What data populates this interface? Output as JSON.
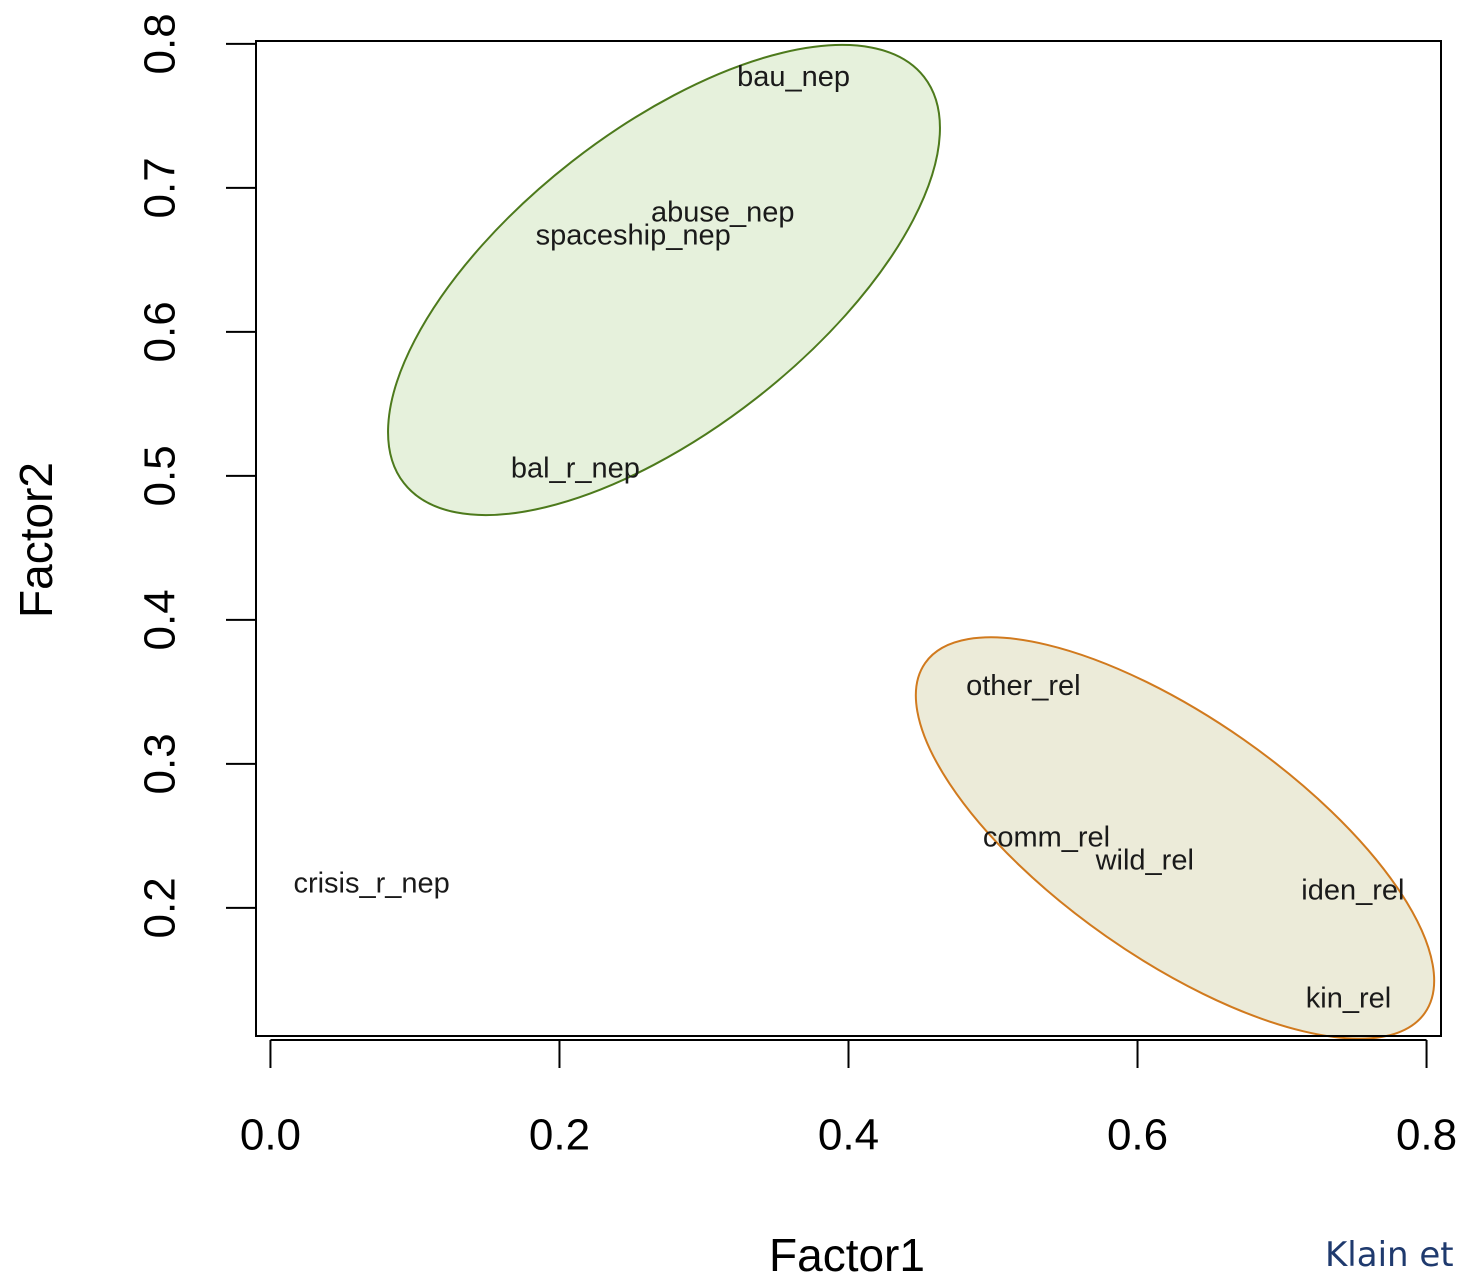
{
  "chart_data": {
    "type": "scatter",
    "x_label": "Factor1",
    "y_label": "Factor2",
    "labels": [
      "bau_nep",
      "abuse_nep",
      "spaceship_nep",
      "bal_r_nep",
      "crisis_r_nep",
      "other_rel",
      "comm_rel",
      "wild_rel",
      "iden_rel",
      "kin_rel"
    ],
    "x": [
      0.362,
      0.313,
      0.251,
      0.211,
      0.07,
      0.521,
      0.537,
      0.605,
      0.749,
      0.746
    ],
    "values": [
      0.777,
      0.683,
      0.667,
      0.505,
      0.217,
      0.354,
      0.249,
      0.233,
      0.212,
      0.137
    ],
    "xlim": [
      -0.01,
      0.81
    ],
    "ylim": [
      0.111,
      0.802
    ],
    "xticks": [
      {
        "value": 0,
        "label": "0.0"
      },
      0.2,
      0.4,
      0.6,
      0.8
    ],
    "yticks": [
      0.2,
      0.3,
      0.4,
      0.5,
      0.6,
      0.7,
      0.8
    ],
    "source": "Klain et"
  }
}
